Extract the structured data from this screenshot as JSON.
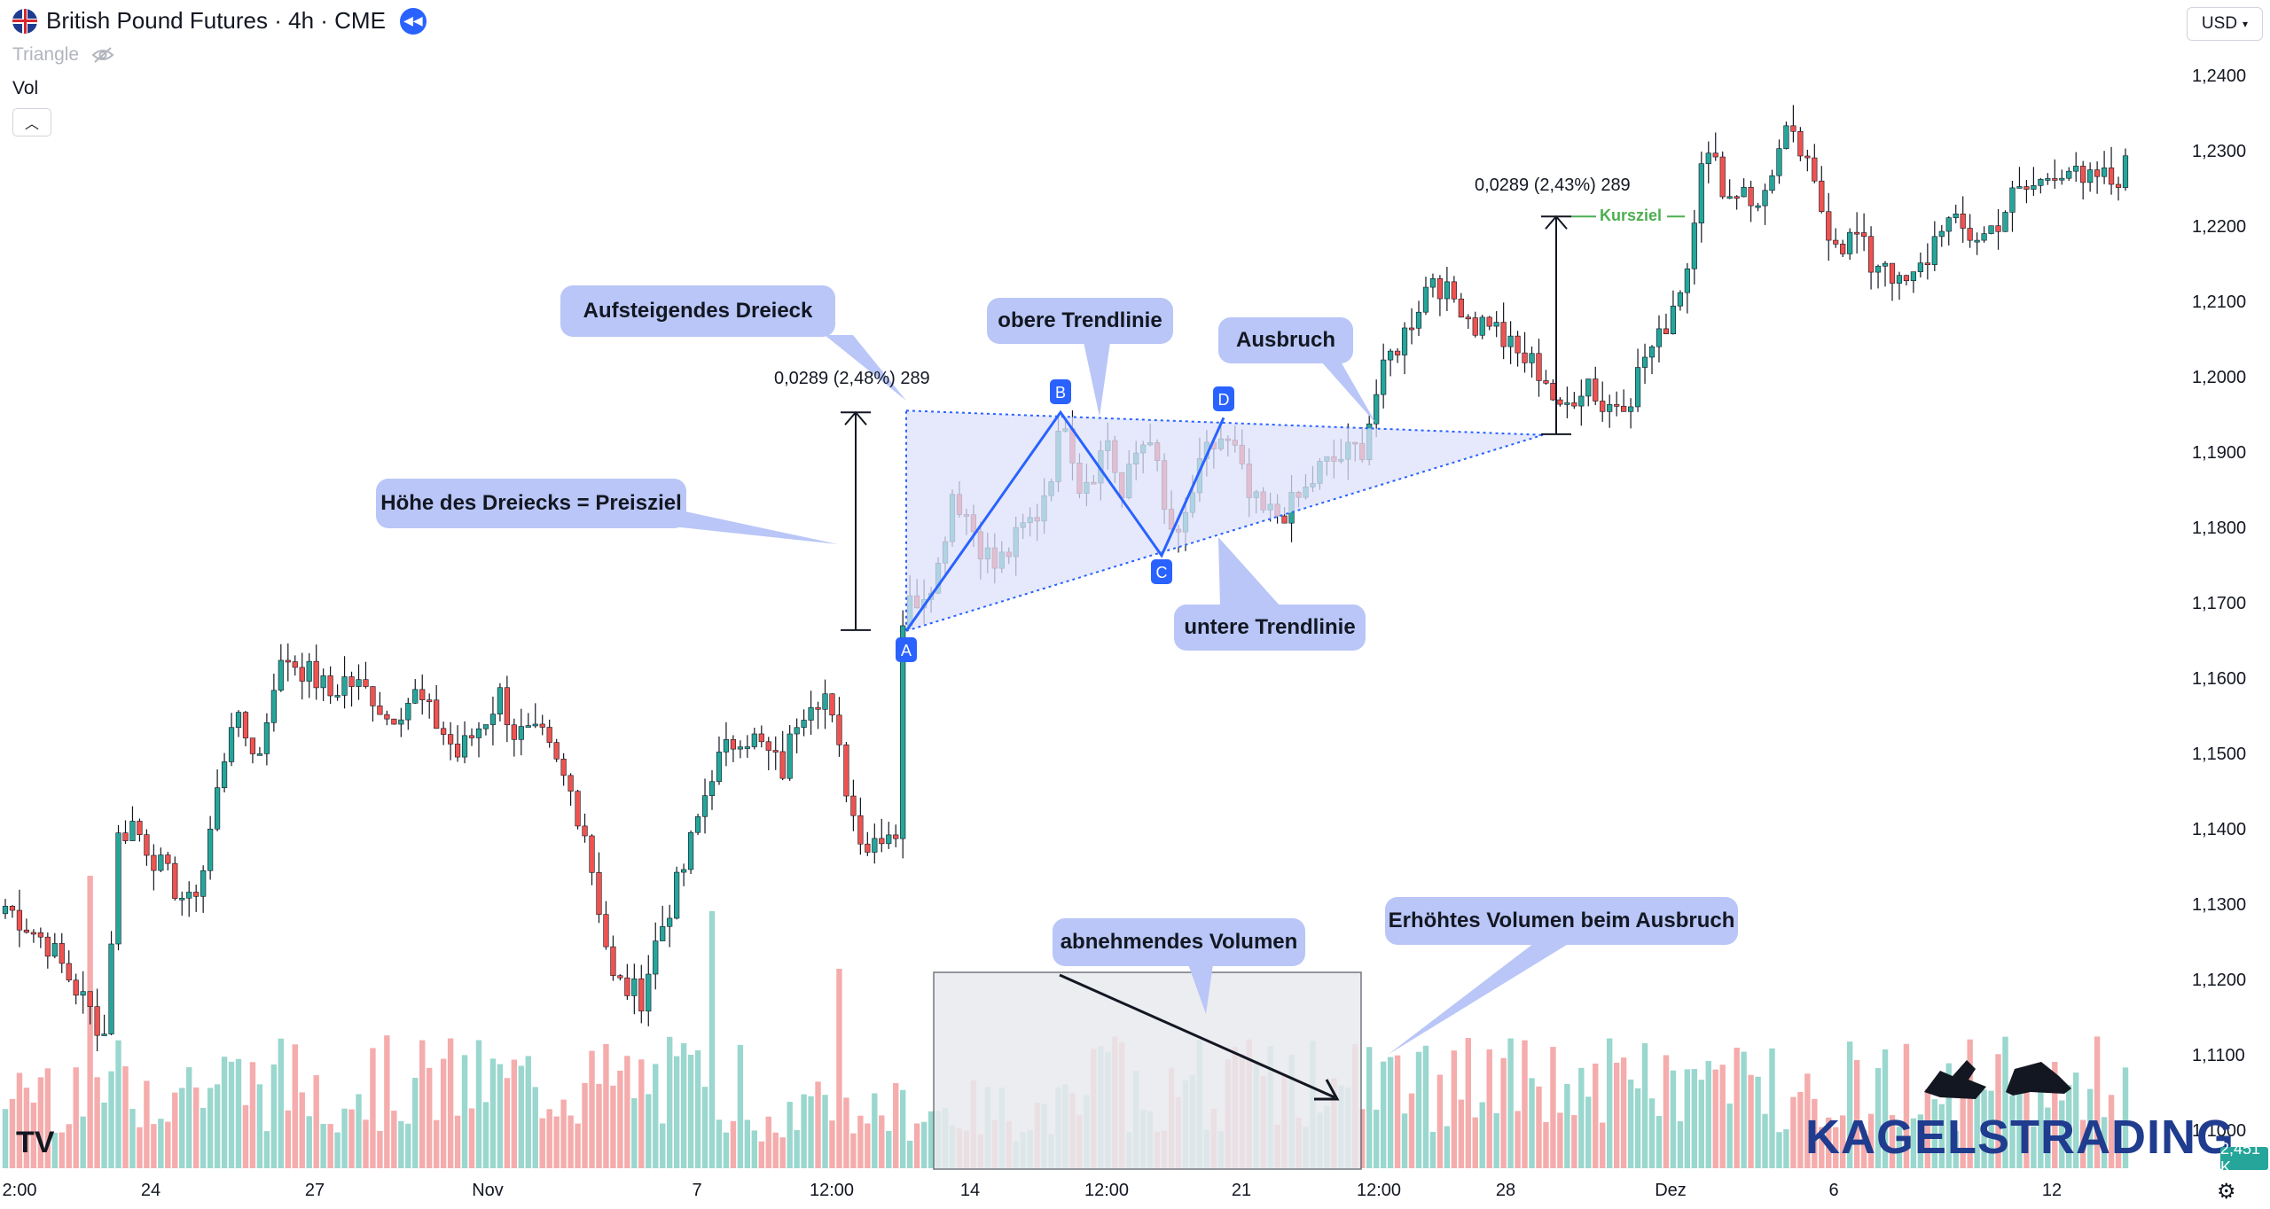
{
  "header": {
    "symbol_title": "British Pound Futures · 4h · CME",
    "indicator_triangle": "Triangle",
    "indicator_vol": "Vol",
    "currency_select": "USD",
    "volume_badge": "2,451 K"
  },
  "brand": {
    "name": "KAGELSTRADING"
  },
  "colors": {
    "up": "#26a69a",
    "down": "#ef5350",
    "accent": "#2962ff",
    "callout": "#b9c6f7",
    "pattern_fill": "#dde2fb",
    "target": "#4caf50"
  },
  "annotations": {
    "aufsteigendes": "Aufsteigendes Dreieck",
    "hoehe": "Höhe des Dreiecks = Preisziel",
    "obere": "obere Trendlinie",
    "untere": "untere Trendlinie",
    "ausbruch": "Ausbruch",
    "abnehmend": "abnehmendes Volumen",
    "erhoeht": "Erhöhtes Volumen beim Ausbruch",
    "measure_left": "0,0289 (2,48%) 289",
    "measure_right": "0,0289 (2,43%) 289",
    "kursziel": "Kursziel",
    "point_a": "A",
    "point_b": "B",
    "point_c": "C",
    "point_d": "D"
  },
  "chart_data": {
    "type": "candlestick",
    "title": "British Pound Futures · 4h · CME",
    "y_ticks": [
      "1,2400",
      "1,2300",
      "1,2200",
      "1,2100",
      "1,2000",
      "1,1900",
      "1,1800",
      "1,1700",
      "1,1600",
      "1,1500",
      "1,1400",
      "1,1300",
      "1,1200",
      "1,1100",
      "1,1000"
    ],
    "x_ticks": [
      "2:00",
      "24",
      "27",
      "Nov",
      "7",
      "12:00",
      "14",
      "12:00",
      "21",
      "12:00",
      "28",
      "Dez",
      "6",
      "12"
    ],
    "ylim": [
      1.0985,
      1.2422
    ],
    "pattern": {
      "name": "Aufsteigendes Dreieck",
      "resistance": 1.1955,
      "points": {
        "A": 1.1665,
        "B": 1.1955,
        "C": 1.1765,
        "D": 1.1948
      }
    },
    "measures": [
      {
        "label": "0,0289 (2,48%) 289",
        "from": 1.1666,
        "to": 1.1955
      },
      {
        "label": "0,0289 (2,43%) 289",
        "from": 1.1926,
        "to": 1.2215
      }
    ],
    "price_target": 1.2215,
    "anchor_prices": [
      [
        0,
        1.13
      ],
      [
        6,
        1.125
      ],
      [
        10,
        1.119
      ],
      [
        14,
        1.113
      ],
      [
        16,
        1.139
      ],
      [
        18,
        1.141
      ],
      [
        22,
        1.135
      ],
      [
        26,
        1.13
      ],
      [
        28,
        1.135
      ],
      [
        32,
        1.155
      ],
      [
        36,
        1.15
      ],
      [
        38,
        1.16
      ],
      [
        40,
        1.163
      ],
      [
        44,
        1.16
      ],
      [
        46,
        1.158
      ],
      [
        48,
        1.16
      ],
      [
        52,
        1.158
      ],
      [
        54,
        1.155
      ],
      [
        58,
        1.158
      ],
      [
        62,
        1.153
      ],
      [
        64,
        1.15
      ],
      [
        68,
        1.155
      ],
      [
        70,
        1.158
      ],
      [
        72,
        1.153
      ],
      [
        76,
        1.152
      ],
      [
        80,
        1.145
      ],
      [
        82,
        1.14
      ],
      [
        84,
        1.13
      ],
      [
        86,
        1.12
      ],
      [
        90,
        1.118
      ],
      [
        92,
        1.125
      ],
      [
        96,
        1.135
      ],
      [
        100,
        1.148
      ],
      [
        104,
        1.153
      ],
      [
        106,
        1.152
      ],
      [
        110,
        1.148
      ],
      [
        112,
        1.155
      ],
      [
        114,
        1.158
      ],
      [
        116,
        1.158
      ],
      [
        118,
        1.15
      ],
      [
        120,
        1.142
      ],
      [
        122,
        1.138
      ],
      [
        124,
        1.14
      ],
      [
        126,
        1.14
      ],
      [
        127,
        1.168
      ],
      [
        128,
        1.17
      ],
      [
        130,
        1.172
      ],
      [
        132,
        1.175
      ],
      [
        134,
        1.185
      ],
      [
        136,
        1.182
      ],
      [
        138,
        1.178
      ],
      [
        140,
        1.175
      ],
      [
        142,
        1.177
      ],
      [
        144,
        1.18
      ],
      [
        146,
        1.182
      ],
      [
        148,
        1.188
      ],
      [
        150,
        1.195
      ],
      [
        152,
        1.186
      ],
      [
        154,
        1.188
      ],
      [
        156,
        1.192
      ],
      [
        158,
        1.184
      ],
      [
        160,
        1.19
      ],
      [
        162,
        1.193
      ],
      [
        164,
        1.182
      ],
      [
        166,
        1.178
      ],
      [
        168,
        1.185
      ],
      [
        170,
        1.19
      ],
      [
        172,
        1.192
      ],
      [
        174,
        1.19
      ],
      [
        176,
        1.184
      ],
      [
        178,
        1.182
      ],
      [
        180,
        1.182
      ],
      [
        182,
        1.183
      ],
      [
        184,
        1.185
      ],
      [
        186,
        1.188
      ],
      [
        188,
        1.189
      ],
      [
        190,
        1.19
      ],
      [
        192,
        1.191
      ],
      [
        194,
        1.198
      ],
      [
        196,
        1.203
      ],
      [
        198,
        1.206
      ],
      [
        200,
        1.21
      ],
      [
        202,
        1.214
      ],
      [
        204,
        1.211
      ],
      [
        206,
        1.21
      ],
      [
        208,
        1.207
      ],
      [
        210,
        1.208
      ],
      [
        212,
        1.205
      ],
      [
        214,
        1.203
      ],
      [
        216,
        1.202
      ],
      [
        218,
        1.2
      ],
      [
        220,
        1.195
      ],
      [
        222,
        1.198
      ],
      [
        224,
        1.2
      ],
      [
        226,
        1.196
      ],
      [
        228,
        1.197
      ],
      [
        230,
        1.198
      ],
      [
        232,
        1.203
      ],
      [
        234,
        1.205
      ],
      [
        236,
        1.21
      ],
      [
        238,
        1.215
      ],
      [
        240,
        1.23
      ],
      [
        242,
        1.228
      ],
      [
        244,
        1.224
      ],
      [
        246,
        1.226
      ],
      [
        248,
        1.222
      ],
      [
        250,
        1.228
      ],
      [
        252,
        1.232
      ],
      [
        254,
        1.23
      ],
      [
        256,
        1.225
      ],
      [
        258,
        1.22
      ],
      [
        260,
        1.218
      ],
      [
        262,
        1.219
      ],
      [
        264,
        1.215
      ],
      [
        266,
        1.216
      ],
      [
        268,
        1.212
      ],
      [
        270,
        1.213
      ],
      [
        272,
        1.216
      ],
      [
        274,
        1.221
      ],
      [
        276,
        1.22
      ],
      [
        278,
        1.219
      ],
      [
        280,
        1.219
      ],
      [
        282,
        1.221
      ],
      [
        284,
        1.224
      ],
      [
        286,
        1.225
      ],
      [
        288,
        1.226
      ],
      [
        290,
        1.228
      ],
      [
        292,
        1.228
      ],
      [
        294,
        1.225
      ],
      [
        296,
        1.227
      ],
      [
        298,
        1.226
      ],
      [
        300,
        1.228
      ]
    ]
  }
}
